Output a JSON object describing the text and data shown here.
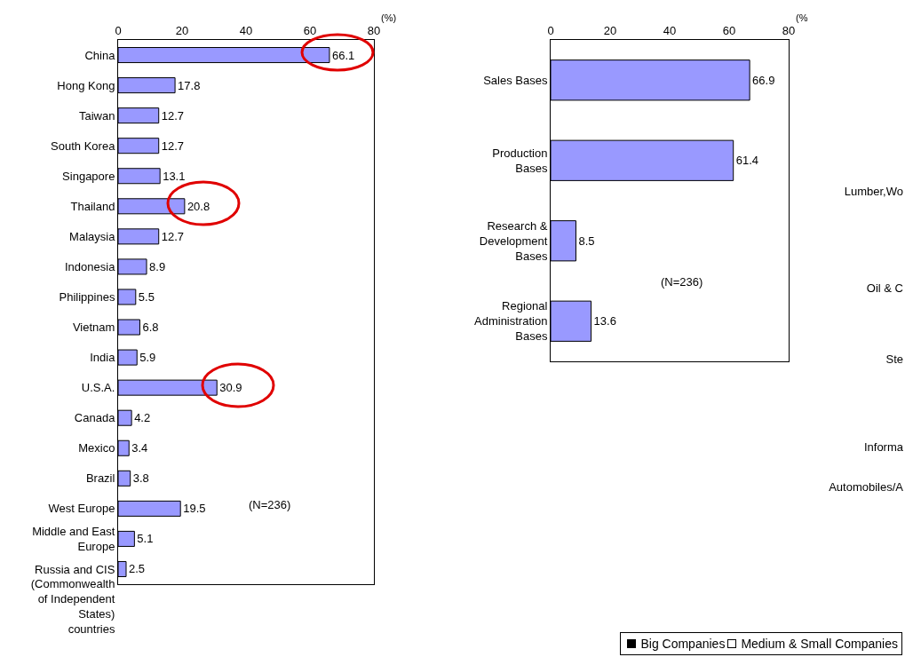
{
  "chart_data": [
    {
      "type": "bar",
      "orientation": "horizontal",
      "xlabel": "(%)",
      "categories": [
        "China",
        "Hong Kong",
        "Taiwan",
        "South Korea",
        "Singapore",
        "Thailand",
        "Malaysia",
        "Indonesia",
        "Philippines",
        "Vietnam",
        "India",
        "U.S.A.",
        "Canada",
        "Mexico",
        "Brazil",
        "West Europe",
        "Middle and East Europe",
        "Russia and CIS (Commonwealth of Independent States) countries"
      ],
      "values": [
        66.1,
        17.8,
        12.7,
        12.7,
        13.1,
        20.8,
        12.7,
        8.9,
        5.5,
        6.8,
        5.9,
        30.9,
        4.2,
        3.4,
        3.8,
        19.5,
        5.1,
        2.5
      ],
      "color": "#9999ff",
      "data_labels": true,
      "grid": false,
      "xlim": [
        0,
        80
      ],
      "xticks": [
        0,
        20,
        40,
        60,
        80
      ],
      "annotations": [
        "(N=236)"
      ]
    },
    {
      "type": "bar",
      "orientation": "horizontal",
      "xlabel": "(%",
      "categories": [
        "Sales Bases",
        "Production Bases",
        "Research & Development Bases",
        "Regional Administration Bases"
      ],
      "values": [
        66.9,
        61.4,
        8.5,
        13.6
      ],
      "color": "#9999ff",
      "data_labels": true,
      "grid": false,
      "xlim": [
        0,
        80
      ],
      "xticks": [
        0,
        20,
        40,
        60,
        80
      ],
      "annotations": [
        "(N=236)"
      ]
    },
    {
      "type": "other",
      "annotations": [
        "Lumber,Wo",
        "Oil & C",
        "Ste",
        "Informa",
        "Automobiles/A",
        "Big Companies",
        "Medium & Small Companies"
      ]
    }
  ]
}
